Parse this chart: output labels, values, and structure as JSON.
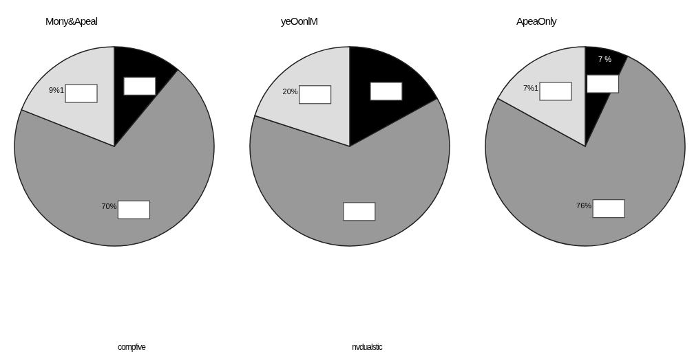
{
  "chart_data": [
    {
      "type": "pie",
      "title": "Mony&Apeal",
      "categories": [
        null,
        null,
        null
      ],
      "values": [
        11,
        70,
        19
      ],
      "colors": [
        "#000000",
        "#999999",
        "#dddddd"
      ],
      "value_labels": [
        null,
        "70%",
        null
      ],
      "annotations": [
        "9%1",
        "compfive"
      ]
    },
    {
      "type": "pie",
      "title": "yeOonlM",
      "categories": [
        null,
        null,
        null
      ],
      "values": [
        17,
        63,
        20
      ],
      "colors": [
        "#000000",
        "#999999",
        "#dddddd"
      ],
      "value_labels": [
        null,
        null,
        "20%"
      ],
      "annotations": [
        "nvdualstic"
      ]
    },
    {
      "type": "pie",
      "title": "ApeaOnly",
      "categories": [
        null,
        null,
        null
      ],
      "values": [
        7,
        76,
        17
      ],
      "colors": [
        "#000000",
        "#999999",
        "#dddddd"
      ],
      "value_labels": [
        "7 %",
        "76%",
        null
      ],
      "annotations": [
        "7%1"
      ]
    }
  ]
}
